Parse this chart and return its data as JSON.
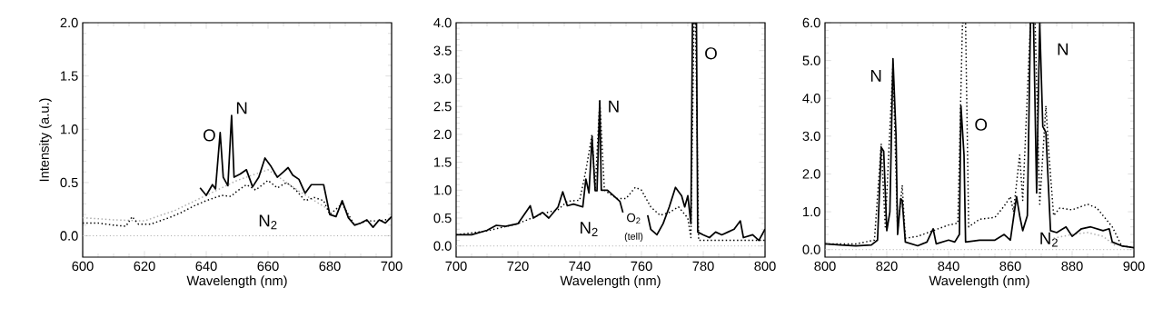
{
  "chart_data": [
    {
      "type": "line",
      "xlabel": "Wavelength (nm)",
      "ylabel": "Intensity (a.u.)",
      "xlim": [
        600,
        700
      ],
      "ylim": [
        -0.2,
        2.0
      ],
      "xticks": [
        600,
        620,
        640,
        660,
        680,
        700
      ],
      "yticks": [
        {
          "value": 0,
          "label": "0.0"
        },
        {
          "value": 0.5,
          "label": "0.5"
        },
        {
          "value": 1,
          "label": "1.0"
        },
        {
          "value": 1.5,
          "label": "1.5"
        },
        {
          "value": 2,
          "label": "2.0"
        }
      ],
      "series": [
        {
          "color": "#aaaaaa",
          "line_style": "dotted",
          "x": [
            600,
            610,
            620,
            630,
            640,
            650,
            660,
            670,
            680
          ],
          "values": [
            0.17,
            0.15,
            0.14,
            0.24,
            0.38,
            0.52,
            0.62,
            0.42,
            0.24
          ]
        },
        {
          "color": "#000000",
          "line_style": "dotted",
          "x": [
            600,
            605,
            610,
            614,
            616,
            618,
            622,
            628,
            632,
            636,
            640,
            645,
            648,
            650,
            653,
            656,
            660,
            663,
            666,
            669,
            672,
            675,
            678,
            680,
            684,
            688,
            692,
            696,
            700
          ],
          "values": [
            0.12,
            0.12,
            0.1,
            0.09,
            0.18,
            0.11,
            0.11,
            0.17,
            0.22,
            0.28,
            0.33,
            0.38,
            0.37,
            0.42,
            0.48,
            0.43,
            0.52,
            0.45,
            0.5,
            0.43,
            0.33,
            0.36,
            0.33,
            0.2,
            0.3,
            0.1,
            0.14,
            0.14,
            0.16
          ]
        },
        {
          "color": "#000000",
          "line_style": "solid",
          "x": [
            638,
            640,
            642,
            643,
            644.5,
            645.5,
            647,
            648.2,
            649,
            651,
            653,
            655,
            657,
            659,
            661,
            663,
            665,
            666.5,
            668,
            670,
            672,
            674,
            676,
            678,
            680,
            682,
            684,
            686,
            688,
            690,
            692,
            694,
            696,
            698,
            700
          ],
          "values": [
            0.45,
            0.38,
            0.48,
            0.44,
            0.97,
            0.55,
            0.47,
            1.13,
            0.55,
            0.58,
            0.62,
            0.46,
            0.55,
            0.73,
            0.65,
            0.55,
            0.6,
            0.64,
            0.57,
            0.53,
            0.4,
            0.48,
            0.48,
            0.48,
            0.2,
            0.18,
            0.33,
            0.17,
            0.1,
            0.12,
            0.15,
            0.08,
            0.15,
            0.12,
            0.18
          ]
        }
      ],
      "ref_lines": [
        {
          "axis": "y",
          "value": 0,
          "color": "#aaaaaa",
          "line_style": "dotted"
        }
      ],
      "annotations": [
        "O",
        "N",
        "N$_{2}$"
      ]
    },
    {
      "type": "line",
      "xlabel": "Wavelength (nm)",
      "xlim": [
        700,
        800
      ],
      "ylim": [
        -0.2,
        4.0
      ],
      "xticks": [
        700,
        720,
        740,
        760,
        780,
        800
      ],
      "yticks": [
        {
          "value": 0,
          "label": "0.0"
        },
        {
          "value": 0.5,
          "label": "0.5"
        },
        {
          "value": 1,
          "label": "1.0"
        },
        {
          "value": 1.5,
          "label": "1.5"
        },
        {
          "value": 2,
          "label": "2.0"
        },
        {
          "value": 2.5,
          "label": "2.5"
        },
        {
          "value": 3,
          "label": "3.0"
        },
        {
          "value": 3.5,
          "label": "3.5"
        },
        {
          "value": 4,
          "label": "4.0"
        }
      ],
      "series": [
        {
          "color": "#000000",
          "line_style": "dotted",
          "x": [
            700,
            710,
            720,
            728,
            733,
            736,
            740,
            742,
            744,
            745,
            746.5,
            748,
            752,
            755,
            758,
            760,
            763,
            766,
            769,
            772,
            775,
            776,
            777,
            777.5,
            778.5,
            782,
            790,
            800
          ],
          "values": [
            0.2,
            0.27,
            0.4,
            0.58,
            0.65,
            0.8,
            0.82,
            1.35,
            2.0,
            1.0,
            2.6,
            1.0,
            0.85,
            0.85,
            1.05,
            1.0,
            0.7,
            0.55,
            0.6,
            0.7,
            0.5,
            0.15,
            4.0,
            4.0,
            0.1,
            0.1,
            0.1,
            0.1
          ]
        },
        {
          "color": "#000000",
          "line_style": "solid",
          "x": [
            700,
            705,
            710,
            713,
            716,
            720,
            724,
            725,
            728,
            730,
            733,
            734.5,
            736,
            738,
            741,
            742,
            743,
            744,
            745,
            745.6,
            746.5,
            747,
            749,
            751,
            753,
            754,
            758,
            762,
            763,
            765,
            767,
            769,
            771,
            773,
            774,
            775,
            776,
            776.5,
            777.8,
            778.2,
            780,
            782,
            784,
            786,
            788,
            790,
            792,
            793,
            796,
            798,
            800
          ],
          "values": [
            0.2,
            0.2,
            0.28,
            0.37,
            0.35,
            0.4,
            0.72,
            0.5,
            0.6,
            0.5,
            0.7,
            0.97,
            0.72,
            0.75,
            0.7,
            1.2,
            0.95,
            1.95,
            0.99,
            0.99,
            2.6,
            1.0,
            1.0,
            0.9,
            0.8,
            0.6,
            null,
            0.55,
            0.3,
            0.2,
            0.4,
            0.7,
            1.05,
            0.9,
            0.7,
            0.9,
            0.4,
            4.0,
            4.0,
            0.25,
            0.2,
            0.15,
            0.25,
            0.2,
            0.25,
            0.3,
            0.45,
            0.15,
            0.2,
            0.1,
            0.3
          ]
        }
      ],
      "ref_lines": [
        {
          "axis": "y",
          "value": 0,
          "color": "#aaaaaa",
          "line_style": "dotted"
        }
      ],
      "annotations": [
        "N",
        "O",
        "N$_{2}$",
        "O$_{2}$",
        "(tell)"
      ]
    },
    {
      "type": "line",
      "xlabel": "Wavelength (nm)",
      "xlim": [
        800,
        900
      ],
      "ylim": [
        -0.2,
        6.0
      ],
      "xticks": [
        800,
        820,
        840,
        860,
        880,
        900
      ],
      "yticks": [
        {
          "value": 0,
          "label": "0.0"
        },
        {
          "value": 1,
          "label": "1.0"
        },
        {
          "value": 2,
          "label": "2.0"
        },
        {
          "value": 3,
          "label": "3.0"
        },
        {
          "value": 4,
          "label": "4.0"
        },
        {
          "value": 5,
          "label": "5.0"
        },
        {
          "value": 6,
          "label": "6.0"
        }
      ],
      "series": [
        {
          "color": "#aaaaaa",
          "line_style": "dotted",
          "x": [
            874,
            880,
            885,
            890,
            894
          ],
          "values": [
            0.3,
            0.4,
            0.45,
            0.35,
            0.1
          ]
        },
        {
          "color": "#000000",
          "line_style": "dotted",
          "x": [
            800,
            810,
            816,
            818.2,
            819.5,
            822,
            823.5,
            825,
            826,
            830,
            835,
            840,
            843,
            844.5,
            845.5,
            846.5,
            850,
            855,
            858,
            860,
            861,
            863,
            864,
            866.5,
            868,
            869.5,
            871.5,
            872.5,
            874,
            876,
            880,
            885,
            888,
            890,
            893,
            896,
            900
          ],
          "values": [
            0.15,
            0.15,
            0.25,
            2.8,
            0.6,
            4.9,
            0.5,
            1.7,
            0.3,
            0.35,
            0.5,
            0.65,
            0.7,
            6.0,
            6.0,
            0.6,
            0.8,
            0.85,
            1.15,
            1.4,
            1.0,
            2.5,
            1.3,
            6.0,
            6.0,
            1.2,
            3.8,
            2.5,
            0.9,
            1.1,
            1.05,
            1.2,
            1.1,
            0.9,
            0.6,
            0.1,
            0.05
          ]
        },
        {
          "color": "#000000",
          "line_style": "solid",
          "x": [
            800,
            805,
            810,
            815,
            817,
            818.2,
            819,
            820,
            821,
            822,
            823,
            823.5,
            824.5,
            825,
            826,
            830,
            833,
            835,
            836,
            840,
            842,
            843.5,
            844,
            845,
            845.5,
            850,
            855,
            858,
            860,
            862,
            863,
            864,
            865.5,
            866.5,
            867.5,
            868.5,
            869.5,
            870.5,
            871.5,
            873,
            875,
            878,
            880,
            883,
            886,
            890,
            892,
            893,
            896,
            900
          ],
          "values": [
            0.15,
            0.12,
            0.1,
            0.12,
            0.25,
            2.7,
            2.6,
            0.5,
            1.0,
            5.05,
            3.0,
            0.4,
            1.35,
            1.3,
            0.2,
            0.1,
            0.2,
            0.55,
            0.15,
            0.25,
            0.2,
            0.4,
            3.8,
            2.5,
            0.2,
            0.25,
            0.25,
            0.4,
            0.25,
            1.4,
            0.9,
            0.5,
            0.9,
            6.0,
            6.0,
            1.5,
            6.0,
            3.25,
            3.1,
            0.5,
            0.45,
            0.6,
            0.35,
            0.55,
            0.6,
            0.5,
            0.55,
            0.2,
            0.1,
            0.05
          ]
        }
      ],
      "ref_lines": [
        {
          "axis": "y",
          "value": 0,
          "color": "#aaaaaa",
          "line_style": "dotted"
        }
      ],
      "annotations": [
        "N",
        "O",
        "N",
        "N$_{2}$"
      ]
    }
  ]
}
